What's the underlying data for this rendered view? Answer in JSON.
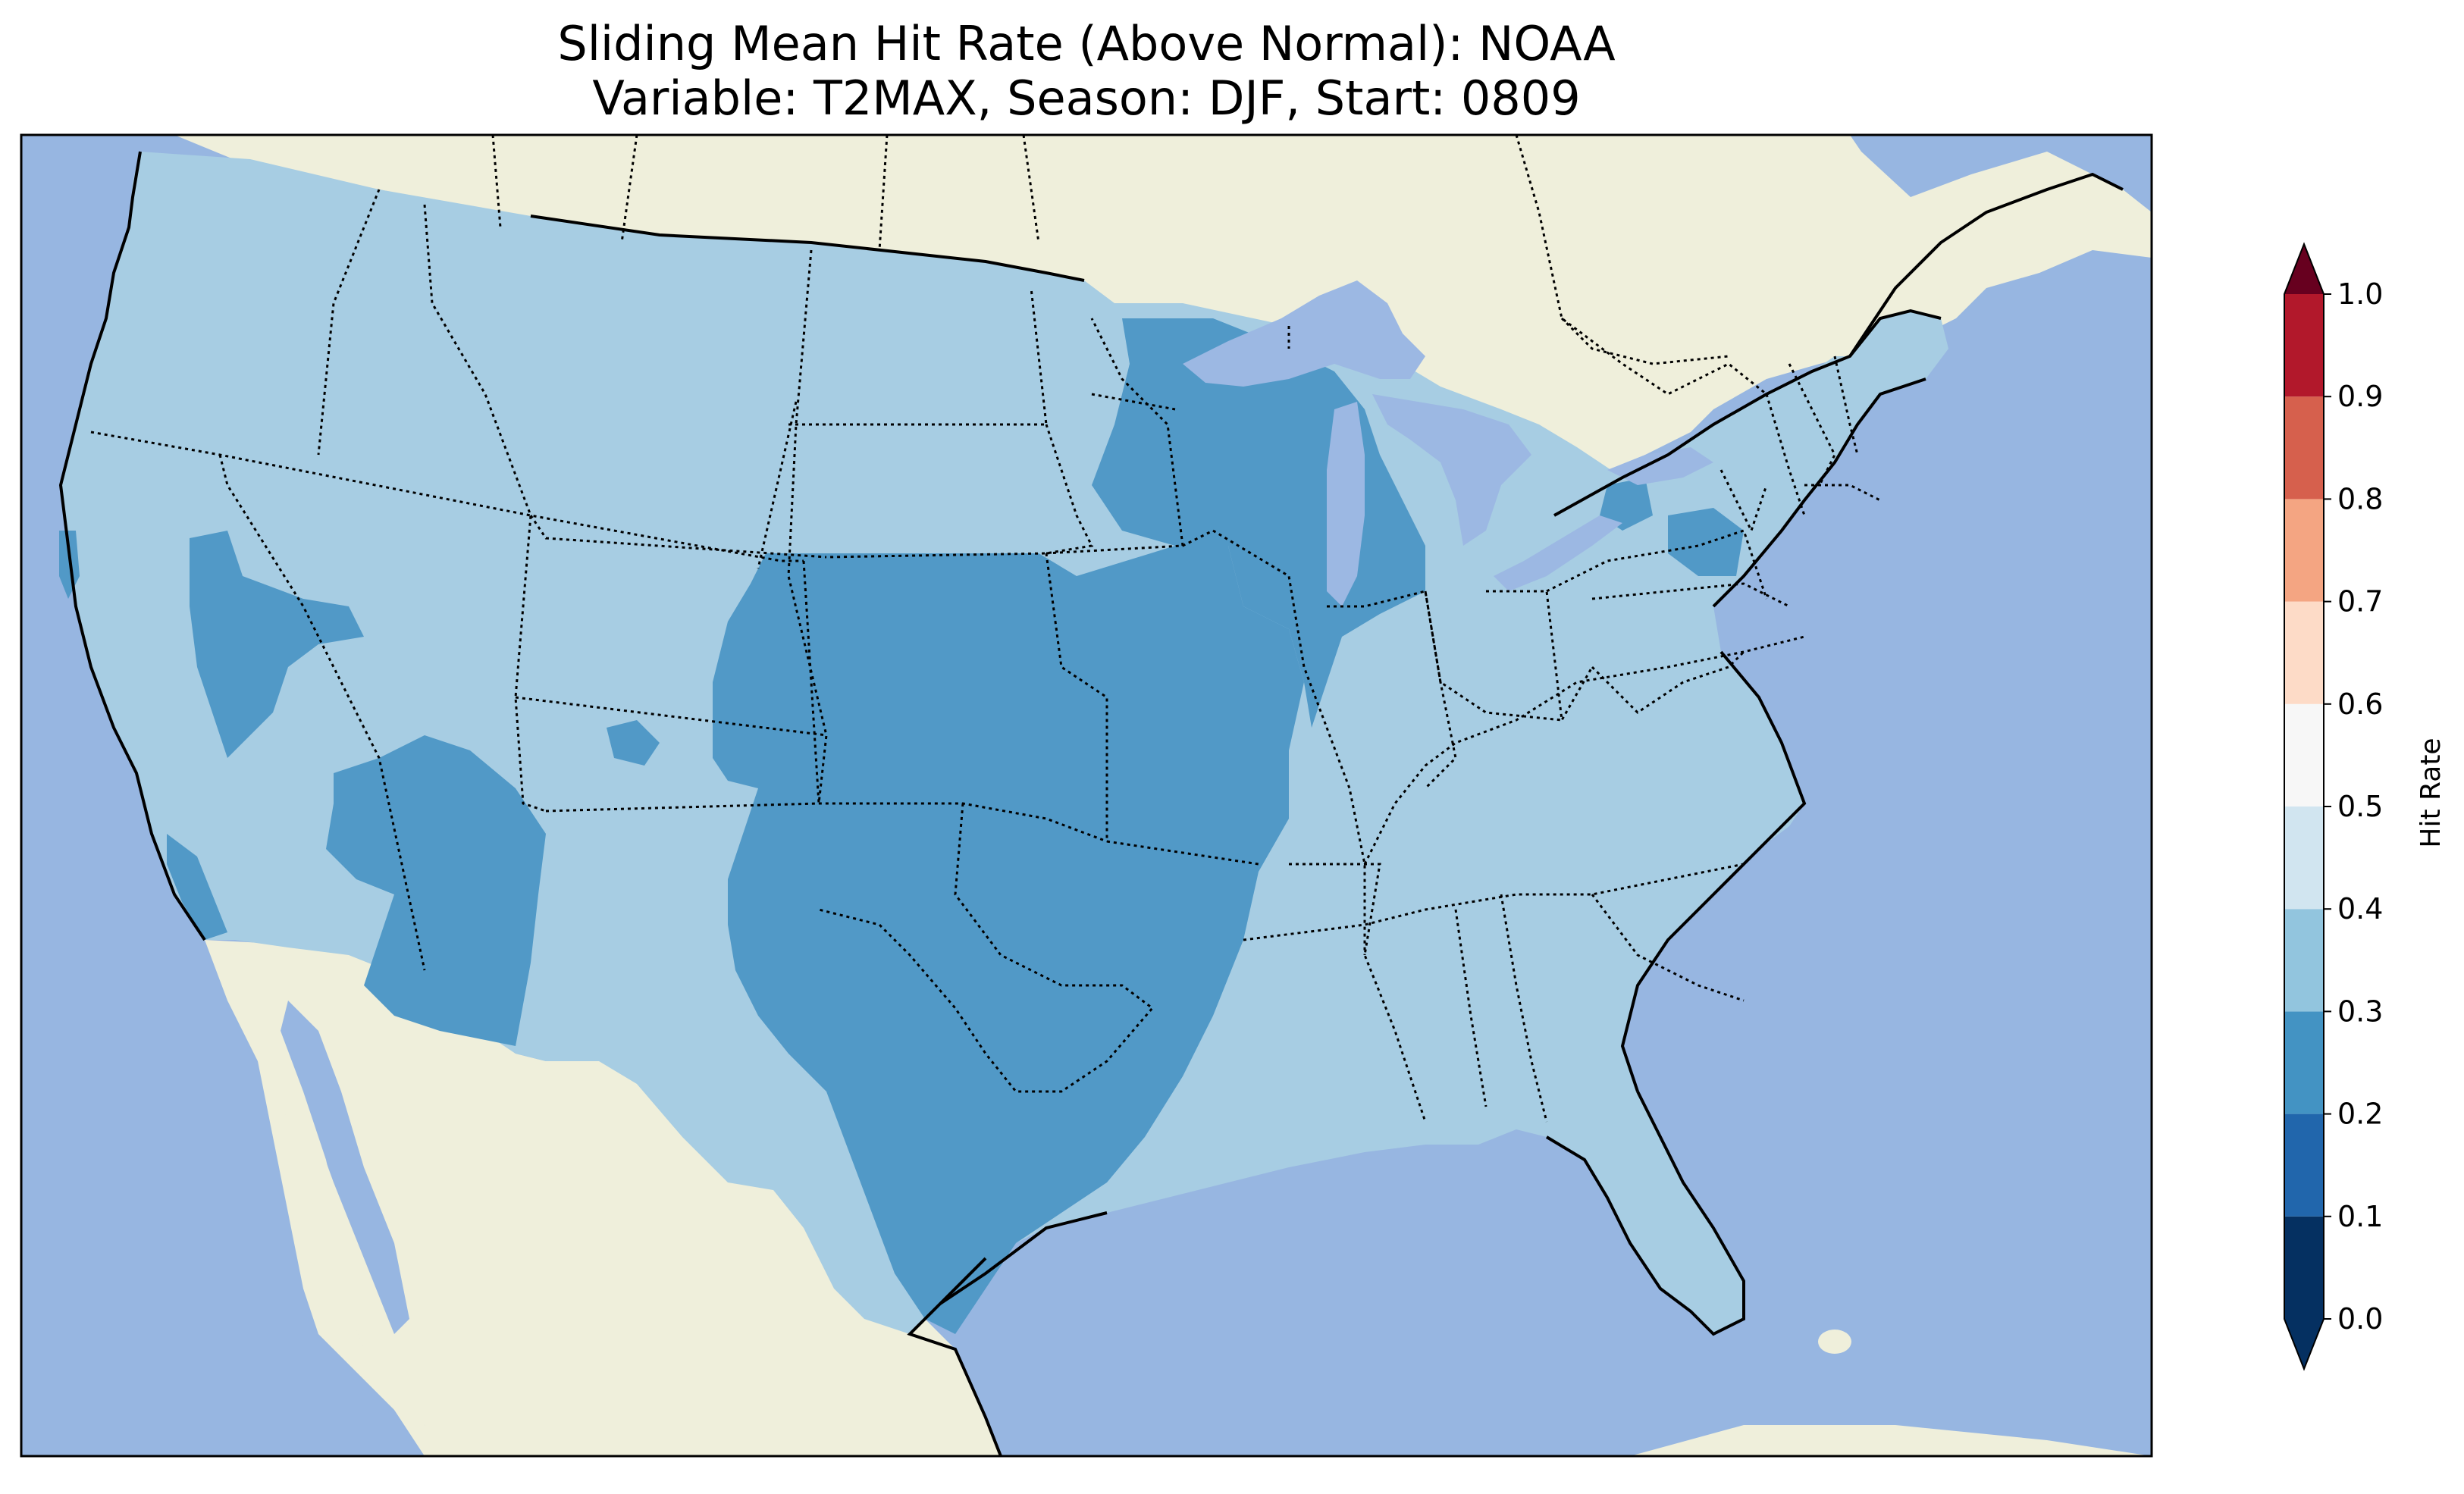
{
  "title_line1": "Sliding Mean Hit Rate (Above Normal): NOAA",
  "title_line2": "Variable: T2MAX, Season: DJF, Start: 0809",
  "colorbar": {
    "label": "Hit Rate",
    "ticks": [
      "0.0",
      "0.1",
      "0.2",
      "0.3",
      "0.4",
      "0.5",
      "0.6",
      "0.7",
      "0.8",
      "0.9",
      "1.0"
    ],
    "bins": [
      {
        "from": 0.0,
        "to": 0.1,
        "color": "#053061"
      },
      {
        "from": 0.1,
        "to": 0.2,
        "color": "#2166ac"
      },
      {
        "from": 0.2,
        "to": 0.3,
        "color": "#4393c3"
      },
      {
        "from": 0.3,
        "to": 0.4,
        "color": "#92c5de"
      },
      {
        "from": 0.4,
        "to": 0.5,
        "color": "#d1e5f0"
      },
      {
        "from": 0.5,
        "to": 0.6,
        "color": "#f7f7f7"
      },
      {
        "from": 0.6,
        "to": 0.7,
        "color": "#fddbc7"
      },
      {
        "from": 0.7,
        "to": 0.8,
        "color": "#f4a582"
      },
      {
        "from": 0.8,
        "to": 0.9,
        "color": "#d6604d"
      },
      {
        "from": 0.9,
        "to": 1.0,
        "color": "#b2182b"
      }
    ],
    "extend_low_color": "#053061",
    "extend_high_color": "#67001f"
  },
  "map_colors": {
    "ocean": "#97b6e1",
    "land": "#efefdb",
    "lakes": "#9cb8e3",
    "hit_rate_0_2_to_0_3": "#5199c7",
    "hit_rate_0_3_to_0_4": "#a7cde3"
  },
  "chart_data": {
    "type": "heatmap",
    "variable": "Hit Rate",
    "range": [
      0.0,
      1.0
    ],
    "dominant_class_range": [
      0.3,
      0.4
    ],
    "lower_class_range": [
      0.2,
      0.3
    ],
    "regions_in_lower_class": [
      "Great Plains / Texas",
      "Upper Midwest",
      "Nevada",
      "Arizona",
      "Southern California coast",
      "Northeast Pennsylvania"
    ]
  }
}
